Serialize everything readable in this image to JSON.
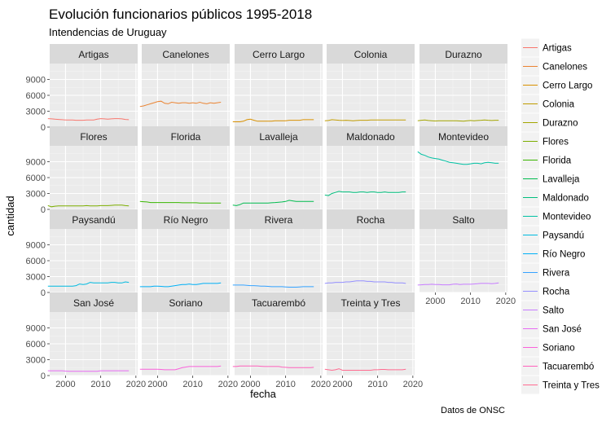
{
  "title": "Evolución funcionarios públicos 1995-2018",
  "subtitle": "Intendencias de Uruguay",
  "caption": "Datos de ONSC",
  "chart_data": {
    "type": "line",
    "title": "Evolución funcionarios públicos 1995-2018",
    "subtitle": "Intendencias de Uruguay",
    "xlabel": "fecha",
    "ylabel": "cantidad",
    "xlim": [
      1995,
      2018
    ],
    "ylim": [
      0,
      12000
    ],
    "x_ticks": [
      2000,
      2010,
      2020
    ],
    "x_tick_labels": [
      "2000",
      "2010",
      "2020"
    ],
    "y_ticks": [
      0,
      3000,
      6000,
      9000
    ],
    "y_tick_labels": [
      "0",
      "3000",
      "6000",
      "9000"
    ],
    "grid": true,
    "legend_position": "right",
    "x": [
      1995,
      1996,
      1997,
      1998,
      1999,
      2000,
      2001,
      2002,
      2003,
      2004,
      2005,
      2006,
      2007,
      2008,
      2009,
      2010,
      2011,
      2012,
      2013,
      2014,
      2015,
      2016,
      2017,
      2018
    ],
    "series": [
      {
        "name": "Artigas",
        "color": "#F8766D",
        "values": [
          1600,
          1550,
          1500,
          1450,
          1400,
          1350,
          1350,
          1350,
          1300,
          1300,
          1300,
          1350,
          1350,
          1350,
          1500,
          1600,
          1550,
          1500,
          1550,
          1600,
          1600,
          1550,
          1450,
          1400
        ]
      },
      {
        "name": "Canelones",
        "color": "#EA8331",
        "values": [
          3900,
          4000,
          4200,
          4400,
          4600,
          4800,
          4900,
          4500,
          4400,
          4700,
          4600,
          4500,
          4600,
          4600,
          4500,
          4600,
          4500,
          4700,
          4500,
          4400,
          4600,
          4500,
          4600,
          4700
        ]
      },
      {
        "name": "Cerro Largo",
        "color": "#D89000",
        "values": [
          1000,
          1000,
          1000,
          1100,
          1400,
          1500,
          1300,
          1100,
          1100,
          1100,
          1100,
          1100,
          1200,
          1200,
          1200,
          1200,
          1300,
          1300,
          1300,
          1300,
          1400,
          1400,
          1400,
          1400
        ]
      },
      {
        "name": "Colonia",
        "color": "#C09B00",
        "values": [
          1200,
          1250,
          1400,
          1350,
          1300,
          1250,
          1300,
          1250,
          1200,
          1250,
          1300,
          1300,
          1300,
          1350,
          1350,
          1350,
          1350,
          1350,
          1350,
          1350,
          1350,
          1350,
          1350,
          1350
        ]
      },
      {
        "name": "Durazno",
        "color": "#A3A500",
        "values": [
          1200,
          1300,
          1350,
          1250,
          1200,
          1150,
          1200,
          1200,
          1200,
          1200,
          1200,
          1200,
          1150,
          1100,
          1200,
          1250,
          1200,
          1250,
          1300,
          1350,
          1300,
          1250,
          1300,
          1300
        ]
      },
      {
        "name": "Flores",
        "color": "#7CAE00",
        "values": [
          700,
          500,
          600,
          650,
          650,
          650,
          650,
          650,
          650,
          650,
          650,
          700,
          650,
          650,
          650,
          700,
          700,
          700,
          750,
          800,
          800,
          800,
          700,
          650
        ]
      },
      {
        "name": "Florida",
        "color": "#39B600",
        "values": [
          1500,
          1450,
          1400,
          1300,
          1300,
          1300,
          1300,
          1300,
          1300,
          1300,
          1300,
          1300,
          1250,
          1250,
          1250,
          1250,
          1250,
          1200,
          1200,
          1200,
          1200,
          1200,
          1200,
          1200
        ]
      },
      {
        "name": "Lavalleja",
        "color": "#00BB4E",
        "values": [
          800,
          700,
          900,
          1200,
          1200,
          1200,
          1200,
          1200,
          1200,
          1200,
          1200,
          1250,
          1300,
          1350,
          1400,
          1500,
          1700,
          1600,
          1500,
          1500,
          1500,
          1500,
          1500,
          1500
        ]
      },
      {
        "name": "Maldonado",
        "color": "#00BF7D",
        "values": [
          2700,
          2600,
          3000,
          3200,
          3400,
          3300,
          3300,
          3300,
          3200,
          3200,
          3300,
          3300,
          3200,
          3300,
          3300,
          3200,
          3200,
          3300,
          3200,
          3200,
          3200,
          3200,
          3300,
          3300
        ]
      },
      {
        "name": "Montevideo",
        "color": "#00C1A3",
        "values": [
          10900,
          10400,
          10200,
          9900,
          9700,
          9600,
          9500,
          9300,
          9100,
          8900,
          8800,
          8700,
          8600,
          8500,
          8500,
          8600,
          8700,
          8700,
          8600,
          8800,
          8900,
          8800,
          8700,
          8700
        ]
      },
      {
        "name": "Paysandú",
        "color": "#00BAE0",
        "values": [
          1200,
          1200,
          1200,
          1200,
          1200,
          1200,
          1200,
          1200,
          1300,
          1600,
          1500,
          1600,
          1900,
          1800,
          1800,
          1800,
          1800,
          1800,
          1900,
          1900,
          1800,
          1800,
          2000,
          1900
        ]
      },
      {
        "name": "Río Negro",
        "color": "#00B0F6",
        "values": [
          1100,
          1100,
          1100,
          1100,
          1200,
          1200,
          1150,
          1100,
          1100,
          1200,
          1300,
          1400,
          1500,
          1500,
          1600,
          1500,
          1500,
          1600,
          1700,
          1700,
          1700,
          1700,
          1700,
          1800
        ]
      },
      {
        "name": "Rivera",
        "color": "#35A2FF",
        "values": [
          1400,
          1400,
          1400,
          1400,
          1350,
          1300,
          1300,
          1250,
          1200,
          1200,
          1150,
          1100,
          1100,
          1100,
          1100,
          1050,
          1000,
          1000,
          1000,
          1050,
          1100,
          1100,
          1100,
          1100
        ]
      },
      {
        "name": "Rocha",
        "color": "#9590FF",
        "values": [
          1700,
          1800,
          1800,
          1900,
          1900,
          1900,
          2000,
          2000,
          2100,
          2200,
          2200,
          2200,
          2100,
          2100,
          2000,
          2000,
          2000,
          2000,
          1900,
          1900,
          1800,
          1800,
          1800,
          1700
        ]
      },
      {
        "name": "Salto",
        "color": "#C77CFF",
        "values": [
          1400,
          1450,
          1500,
          1500,
          1550,
          1500,
          1500,
          1450,
          1450,
          1450,
          1550,
          1600,
          1500,
          1550,
          1550,
          1550,
          1600,
          1650,
          1700,
          1700,
          1700,
          1650,
          1700,
          1800
        ]
      },
      {
        "name": "San José",
        "color": "#E76BF3",
        "values": [
          900,
          900,
          900,
          900,
          900,
          850,
          800,
          800,
          800,
          800,
          800,
          800,
          800,
          800,
          800,
          900,
          900,
          900,
          900,
          900,
          900,
          900,
          900,
          900
        ]
      },
      {
        "name": "Soriano",
        "color": "#FA62DB",
        "values": [
          1200,
          1200,
          1200,
          1200,
          1200,
          1200,
          1150,
          1100,
          1100,
          1100,
          1100,
          1300,
          1500,
          1600,
          1700,
          1700,
          1700,
          1700,
          1700,
          1700,
          1700,
          1700,
          1700,
          1800
        ]
      },
      {
        "name": "Tacuarembó",
        "color": "#FF62BC",
        "values": [
          1700,
          1700,
          1800,
          1800,
          1800,
          1800,
          1800,
          1800,
          1750,
          1700,
          1700,
          1700,
          1700,
          1700,
          1600,
          1550,
          1500,
          1500,
          1500,
          1500,
          1500,
          1500,
          1500,
          1550
        ]
      },
      {
        "name": "Treinta y Tres",
        "color": "#FF6C91",
        "values": [
          1200,
          1100,
          1000,
          1100,
          1300,
          1000,
          1000,
          1000,
          1000,
          1000,
          1000,
          1000,
          1000,
          1000,
          1100,
          1100,
          1150,
          1150,
          1100,
          1100,
          1100,
          1100,
          1100,
          1200
        ]
      }
    ]
  }
}
